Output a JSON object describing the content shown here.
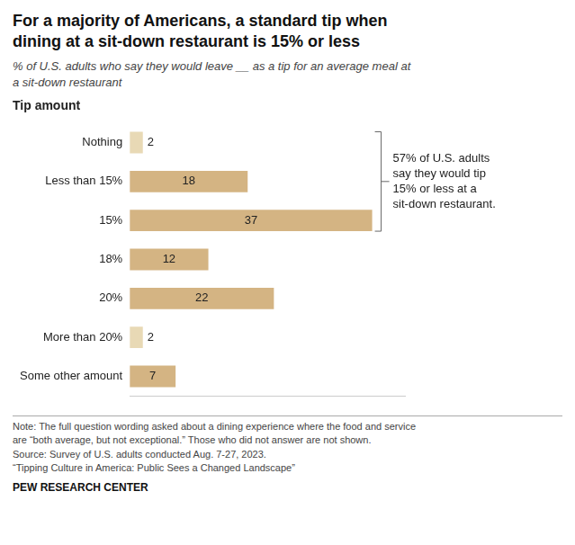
{
  "chart_data": {
    "type": "bar",
    "orientation": "horizontal",
    "title": "For a majority of Americans, a standard tip when\ndining at a sit-down restaurant is 15% or less",
    "subtitle": "% of U.S. adults who say they would leave __ as a tip for an average meal at\na sit-down restaurant",
    "ylabel": "Tip amount",
    "categories": [
      "Nothing",
      "Less than 15%",
      "15%",
      "18%",
      "20%",
      "More than 20%",
      "Some other amount"
    ],
    "values": [
      2,
      18,
      37,
      12,
      22,
      2,
      7
    ],
    "colors": [
      "#E8D9B5",
      "#D4B483",
      "#D4B483",
      "#D4B483",
      "#D4B483",
      "#E8D9B5",
      "#D4B483"
    ],
    "xlim": [
      0,
      42
    ],
    "grid": false,
    "data_labels": true,
    "tick_labels": "y",
    "annotation": "57% of U.S. adults\nsay they would tip\n15% or less at a\nsit-down restaurant.",
    "note": "Note: The full question wording asked about a dining experience where the food and service\nare “both average, but not exceptional.” Those who did not answer are not shown.\nSource: Survey of U.S. adults conducted Aug. 7-27, 2023.\n“Tipping Culture in America: Public Sees a Changed Landscape”",
    "source": "PEW RESEARCH CENTER"
  }
}
